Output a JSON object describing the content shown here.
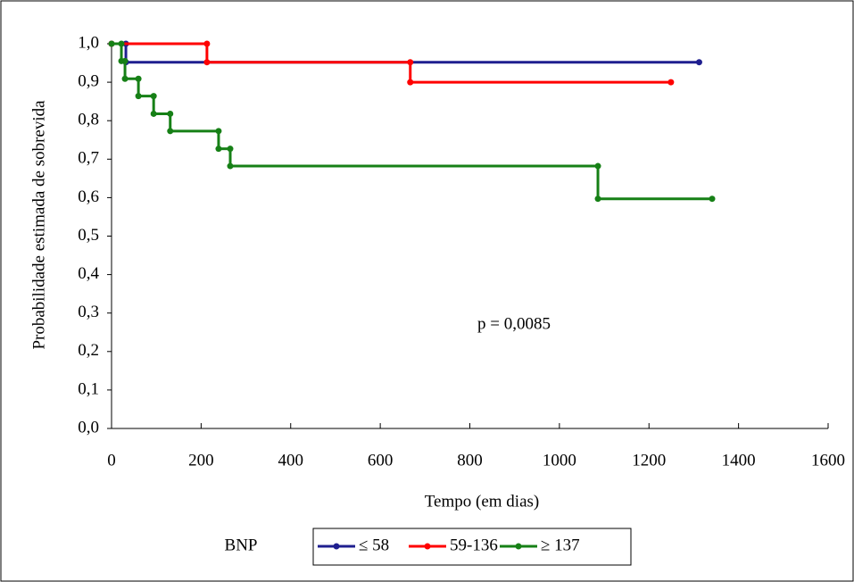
{
  "chart_data": {
    "type": "step",
    "x_label": "Tempo (em dias)",
    "y_label": "Probabilidade estimada de sobrevida",
    "annotation": "p = 0,0085",
    "legend_title": "BNP",
    "legend": "bottom",
    "xlim": [
      0,
      1600
    ],
    "xticks": [
      0,
      200,
      400,
      600,
      800,
      1000,
      1200,
      1400,
      1600
    ],
    "ylim": [
      0,
      1
    ],
    "yticks": [
      {
        "value": 0,
        "label": "0,0"
      },
      {
        "value": 0.1,
        "label": "0,1"
      },
      {
        "value": 0.2,
        "label": "0,2"
      },
      {
        "value": 0.3,
        "label": "0,3"
      },
      {
        "value": 0.4,
        "label": "0,4"
      },
      {
        "value": 0.5,
        "label": "0,5"
      },
      {
        "value": 0.6,
        "label": "0,6"
      },
      {
        "value": 0.7,
        "label": "0,7"
      },
      {
        "value": 0.8,
        "label": "0,8"
      },
      {
        "value": 0.9,
        "label": "0,9"
      },
      {
        "value": 1,
        "label": "1,0"
      }
    ],
    "series": [
      {
        "name": "≤ 58",
        "color": "#1f1f8f",
        "x": [
          0,
          32,
          1312
        ],
        "values": [
          1.0,
          0.952,
          0.952
        ]
      },
      {
        "name": "59-136",
        "color": "#ff0000",
        "x": [
          0,
          213,
          667,
          1249
        ],
        "values": [
          1.0,
          0.952,
          0.9,
          0.9
        ]
      },
      {
        "name": "≥ 137",
        "color": "#168016",
        "x": [
          0,
          22,
          30,
          60,
          94,
          131,
          239,
          265,
          1086,
          1341
        ],
        "values": [
          1.0,
          0.955,
          0.909,
          0.864,
          0.818,
          0.773,
          0.727,
          0.682,
          0.597,
          0.597
        ]
      }
    ]
  }
}
